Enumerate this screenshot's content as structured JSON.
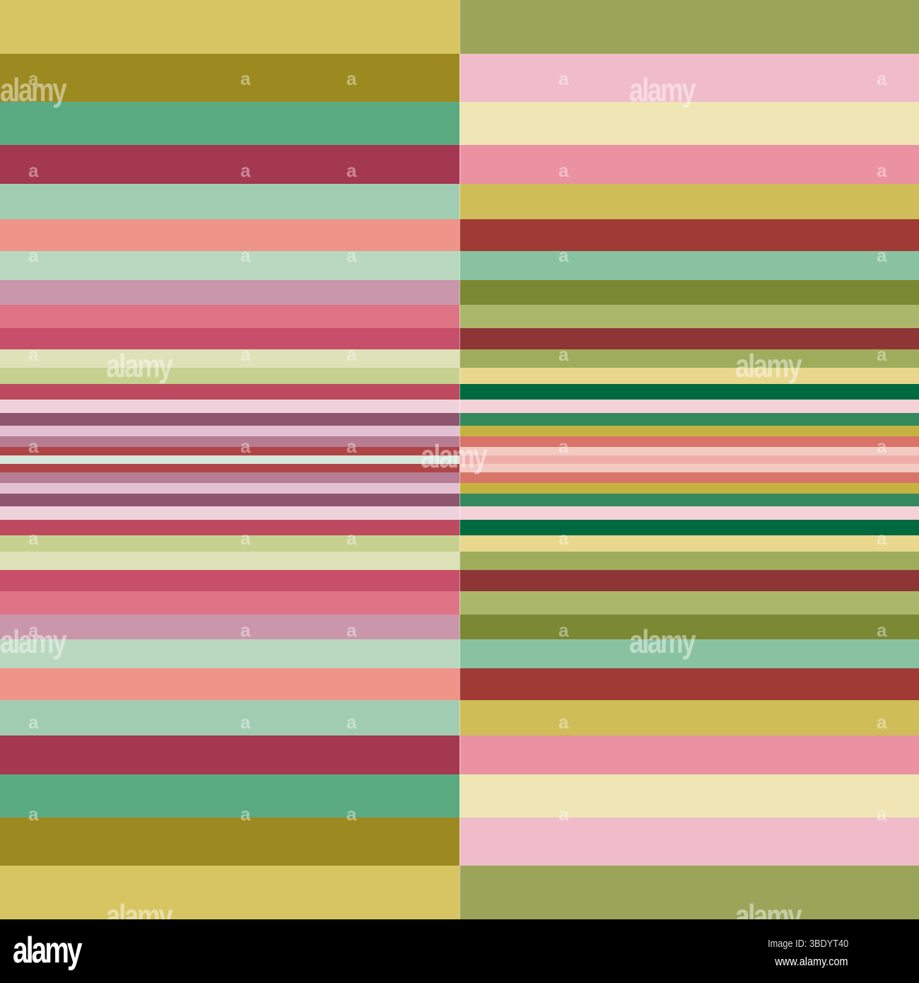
{
  "left_panel": {
    "stripe_colors_top_to_center": [
      "#d7c562",
      "#9c8a20",
      "#5aaa82",
      "#a43850",
      "#a0cdb2",
      "#ef9488",
      "#b9d8bf",
      "#c996ab",
      "#de7486",
      "#c84f69",
      "#dde2b8",
      "#c6d08f",
      "#bd4a5e",
      "#efd3dc",
      "#8e566e",
      "#e3c1d2",
      "#b57c93",
      "#b04547",
      "#d6e7dc"
    ]
  },
  "right_panel": {
    "stripe_colors_top_to_center": [
      "#9aa55a",
      "#f0bcca",
      "#efe5b5",
      "#ea91a2",
      "#cfbd58",
      "#a03a35",
      "#89c2a0",
      "#7b8834",
      "#abb86b",
      "#8e3535",
      "#9fac5c",
      "#e8d78c",
      "#006940",
      "#f4d2d8",
      "#348a5c",
      "#c6b241",
      "#d97468",
      "#f3cac2",
      "#f0aeab"
    ]
  },
  "watermark": {
    "text": "alamy",
    "mark": "a"
  },
  "footer": {
    "logo": "alamy",
    "image_id": "Image ID: 3BDYT40",
    "url": "www.alamy.com"
  }
}
